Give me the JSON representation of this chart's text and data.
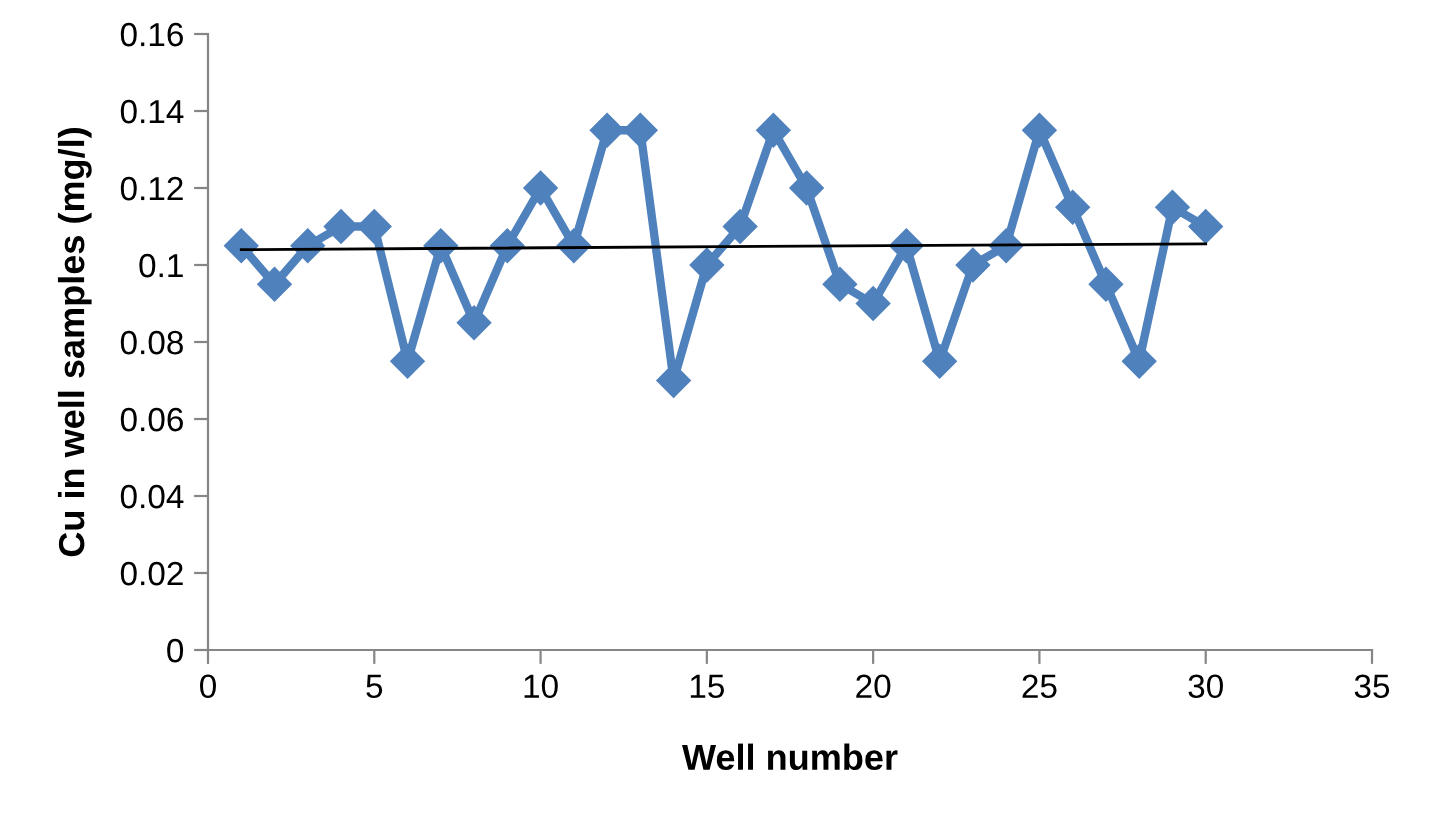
{
  "chart_data": {
    "type": "line",
    "xlabel": "Well number",
    "ylabel": "Cu in well samples (mg/l)",
    "xlim": [
      0,
      35
    ],
    "xticks": [
      0,
      5,
      10,
      15,
      20,
      25,
      30,
      35
    ],
    "ylim": [
      0,
      0.16
    ],
    "yticks": [
      {
        "value": 0,
        "label": "0"
      },
      {
        "value": 0.02,
        "label": "0.02"
      },
      {
        "value": 0.04,
        "label": "0.04"
      },
      {
        "value": 0.06,
        "label": "0.06"
      },
      {
        "value": 0.08,
        "label": "0.08"
      },
      {
        "value": 0.1,
        "label": "0.1"
      },
      {
        "value": 0.12,
        "label": "0.12"
      },
      {
        "value": 0.14,
        "label": "0.14"
      },
      {
        "value": 0.16,
        "label": "0.16"
      }
    ],
    "grid": false,
    "legend": false,
    "series": [
      {
        "color": "#4f81bd",
        "marker": "diamond",
        "line_style": "solid",
        "x": [
          1,
          2,
          3,
          4,
          5,
          6,
          7,
          8,
          9,
          10,
          11,
          12,
          13,
          14,
          15,
          16,
          17,
          18,
          19,
          20,
          21,
          22,
          23,
          24,
          25,
          26,
          27,
          28,
          29,
          30
        ],
        "values": [
          0.105,
          0.095,
          0.105,
          0.11,
          0.11,
          0.075,
          0.105,
          0.085,
          0.105,
          0.12,
          0.105,
          0.135,
          0.135,
          0.07,
          0.1,
          0.11,
          0.135,
          0.12,
          0.095,
          0.09,
          0.105,
          0.075,
          0.1,
          0.105,
          0.135,
          0.115,
          0.095,
          0.075,
          0.115,
          0.11
        ]
      },
      {
        "color": "#000000",
        "marker": "none",
        "line_style": "solid",
        "x": [
          1,
          30
        ],
        "values": [
          0.104,
          0.1055
        ]
      }
    ]
  }
}
